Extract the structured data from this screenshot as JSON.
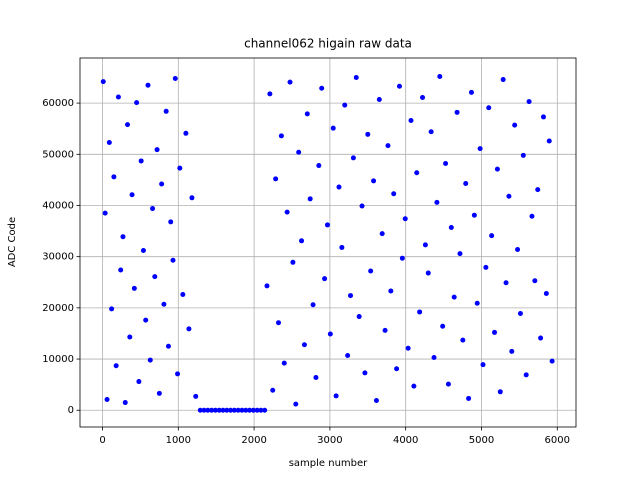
{
  "chart_data": {
    "type": "scatter",
    "title": "channel062 higain raw data",
    "x_label": "sample number",
    "y_label": "ADC Code",
    "color": "#0000ff",
    "grid": true,
    "xlim": [
      -297,
      6247
    ],
    "ylim": [
      -3277,
      68812
    ],
    "xticks": [
      0,
      1000,
      2000,
      3000,
      4000,
      5000,
      6000
    ],
    "yticks": [
      0,
      10000,
      20000,
      30000,
      40000,
      50000,
      60000
    ],
    "x": [
      10,
      35,
      60,
      90,
      120,
      150,
      180,
      210,
      240,
      270,
      300,
      330,
      360,
      390,
      420,
      450,
      480,
      510,
      540,
      570,
      600,
      630,
      660,
      690,
      720,
      750,
      780,
      810,
      840,
      870,
      900,
      930,
      960,
      990,
      1020,
      1060,
      1100,
      1140,
      1180,
      1230,
      1290,
      1340,
      1390,
      1440,
      1490,
      1540,
      1590,
      1640,
      1690,
      1740,
      1790,
      1840,
      1890,
      1940,
      1990,
      2040,
      2090,
      2140,
      2170,
      2208,
      2246,
      2284,
      2322,
      2360,
      2398,
      2436,
      2474,
      2512,
      2550,
      2588,
      2626,
      2664,
      2702,
      2740,
      2778,
      2816,
      2854,
      2892,
      2930,
      2968,
      3006,
      3044,
      3082,
      3120,
      3158,
      3196,
      3234,
      3272,
      3310,
      3348,
      3386,
      3424,
      3462,
      3500,
      3538,
      3576,
      3614,
      3652,
      3690,
      3728,
      3766,
      3804,
      3842,
      3880,
      3918,
      3956,
      3994,
      4032,
      4070,
      4108,
      4146,
      4184,
      4222,
      4260,
      4298,
      4336,
      4374,
      4412,
      4450,
      4488,
      4526,
      4564,
      4602,
      4640,
      4678,
      4716,
      4754,
      4792,
      4830,
      4868,
      4906,
      4944,
      4982,
      5020,
      5058,
      5096,
      5134,
      5172,
      5210,
      5248,
      5286,
      5324,
      5362,
      5400,
      5438,
      5476,
      5514,
      5552,
      5590,
      5628,
      5666,
      5704,
      5742,
      5780,
      5818,
      5856,
      5894,
      5932
    ],
    "values": [
      64200,
      38500,
      2100,
      52300,
      19800,
      45600,
      8700,
      61200,
      27400,
      33900,
      1500,
      55800,
      14300,
      42100,
      23800,
      60100,
      5600,
      48700,
      31200,
      17600,
      63500,
      9800,
      39400,
      26100,
      50900,
      3300,
      44200,
      20700,
      58400,
      12500,
      36800,
      29300,
      64800,
      7100,
      47300,
      22600,
      54100,
      15900,
      41500,
      2700,
      0,
      0,
      0,
      0,
      0,
      0,
      0,
      0,
      0,
      0,
      0,
      0,
      0,
      0,
      0,
      0,
      0,
      0,
      24300,
      61800,
      3900,
      45200,
      17100,
      53600,
      9200,
      38700,
      64100,
      28900,
      1200,
      50400,
      33100,
      12800,
      57900,
      41300,
      20600,
      6400,
      47800,
      62900,
      25700,
      36200,
      14900,
      55100,
      2800,
      43600,
      31800,
      59600,
      10700,
      22400,
      49300,
      65000,
      18300,
      39900,
      7300,
      53900,
      27200,
      44800,
      1900,
      60700,
      34500,
      15600,
      51700,
      23300,
      42300,
      8100,
      63300,
      29700,
      37400,
      12100,
      56600,
      4700,
      46400,
      19200,
      61100,
      32300,
      26800,
      54400,
      10300,
      40600,
      65200,
      16400,
      48200,
      5100,
      35700,
      22100,
      58200,
      30600,
      13700,
      44300,
      2300,
      62100,
      38100,
      20900,
      51100,
      8900,
      27900,
      59100,
      34100,
      15200,
      47100,
      3600,
      64600,
      24900,
      41800,
      11500,
      55700,
      31400,
      18900,
      49800,
      6900,
      60300,
      37900,
      25300,
      43100,
      14100,
      57300,
      22800,
      52600,
      9600
    ]
  }
}
